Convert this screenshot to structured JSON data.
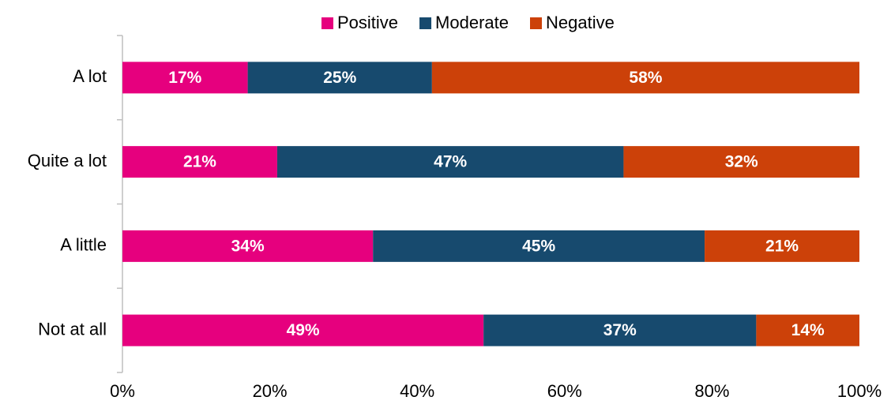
{
  "chart_data": {
    "type": "stacked_barh",
    "categories": [
      "A lot",
      "Quite a lot",
      "A little",
      "Not at all"
    ],
    "series": [
      {
        "name": "Positive",
        "color": "#e6007e",
        "values": [
          17,
          21,
          34,
          49
        ],
        "value_labels": [
          "17%",
          "21%",
          "34%",
          "49%"
        ]
      },
      {
        "name": "Moderate",
        "color": "#174a6e",
        "values": [
          25,
          47,
          45,
          37
        ],
        "value_labels": [
          "25%",
          "47%",
          "45%",
          "37%"
        ]
      },
      {
        "name": "Negative",
        "color": "#cc4109",
        "values": [
          58,
          32,
          21,
          14
        ],
        "value_labels": [
          "58%",
          "32%",
          "21%",
          "14%"
        ]
      }
    ],
    "xlim": [
      0,
      100
    ],
    "xticks": [
      {
        "value": 0,
        "label": "0%"
      },
      {
        "value": 20,
        "label": "20%"
      },
      {
        "value": 40,
        "label": "40%"
      },
      {
        "value": 60,
        "label": "60%"
      },
      {
        "value": 80,
        "label": "80%"
      },
      {
        "value": 100,
        "label": "100%"
      }
    ],
    "grid": false,
    "legend": "top"
  }
}
